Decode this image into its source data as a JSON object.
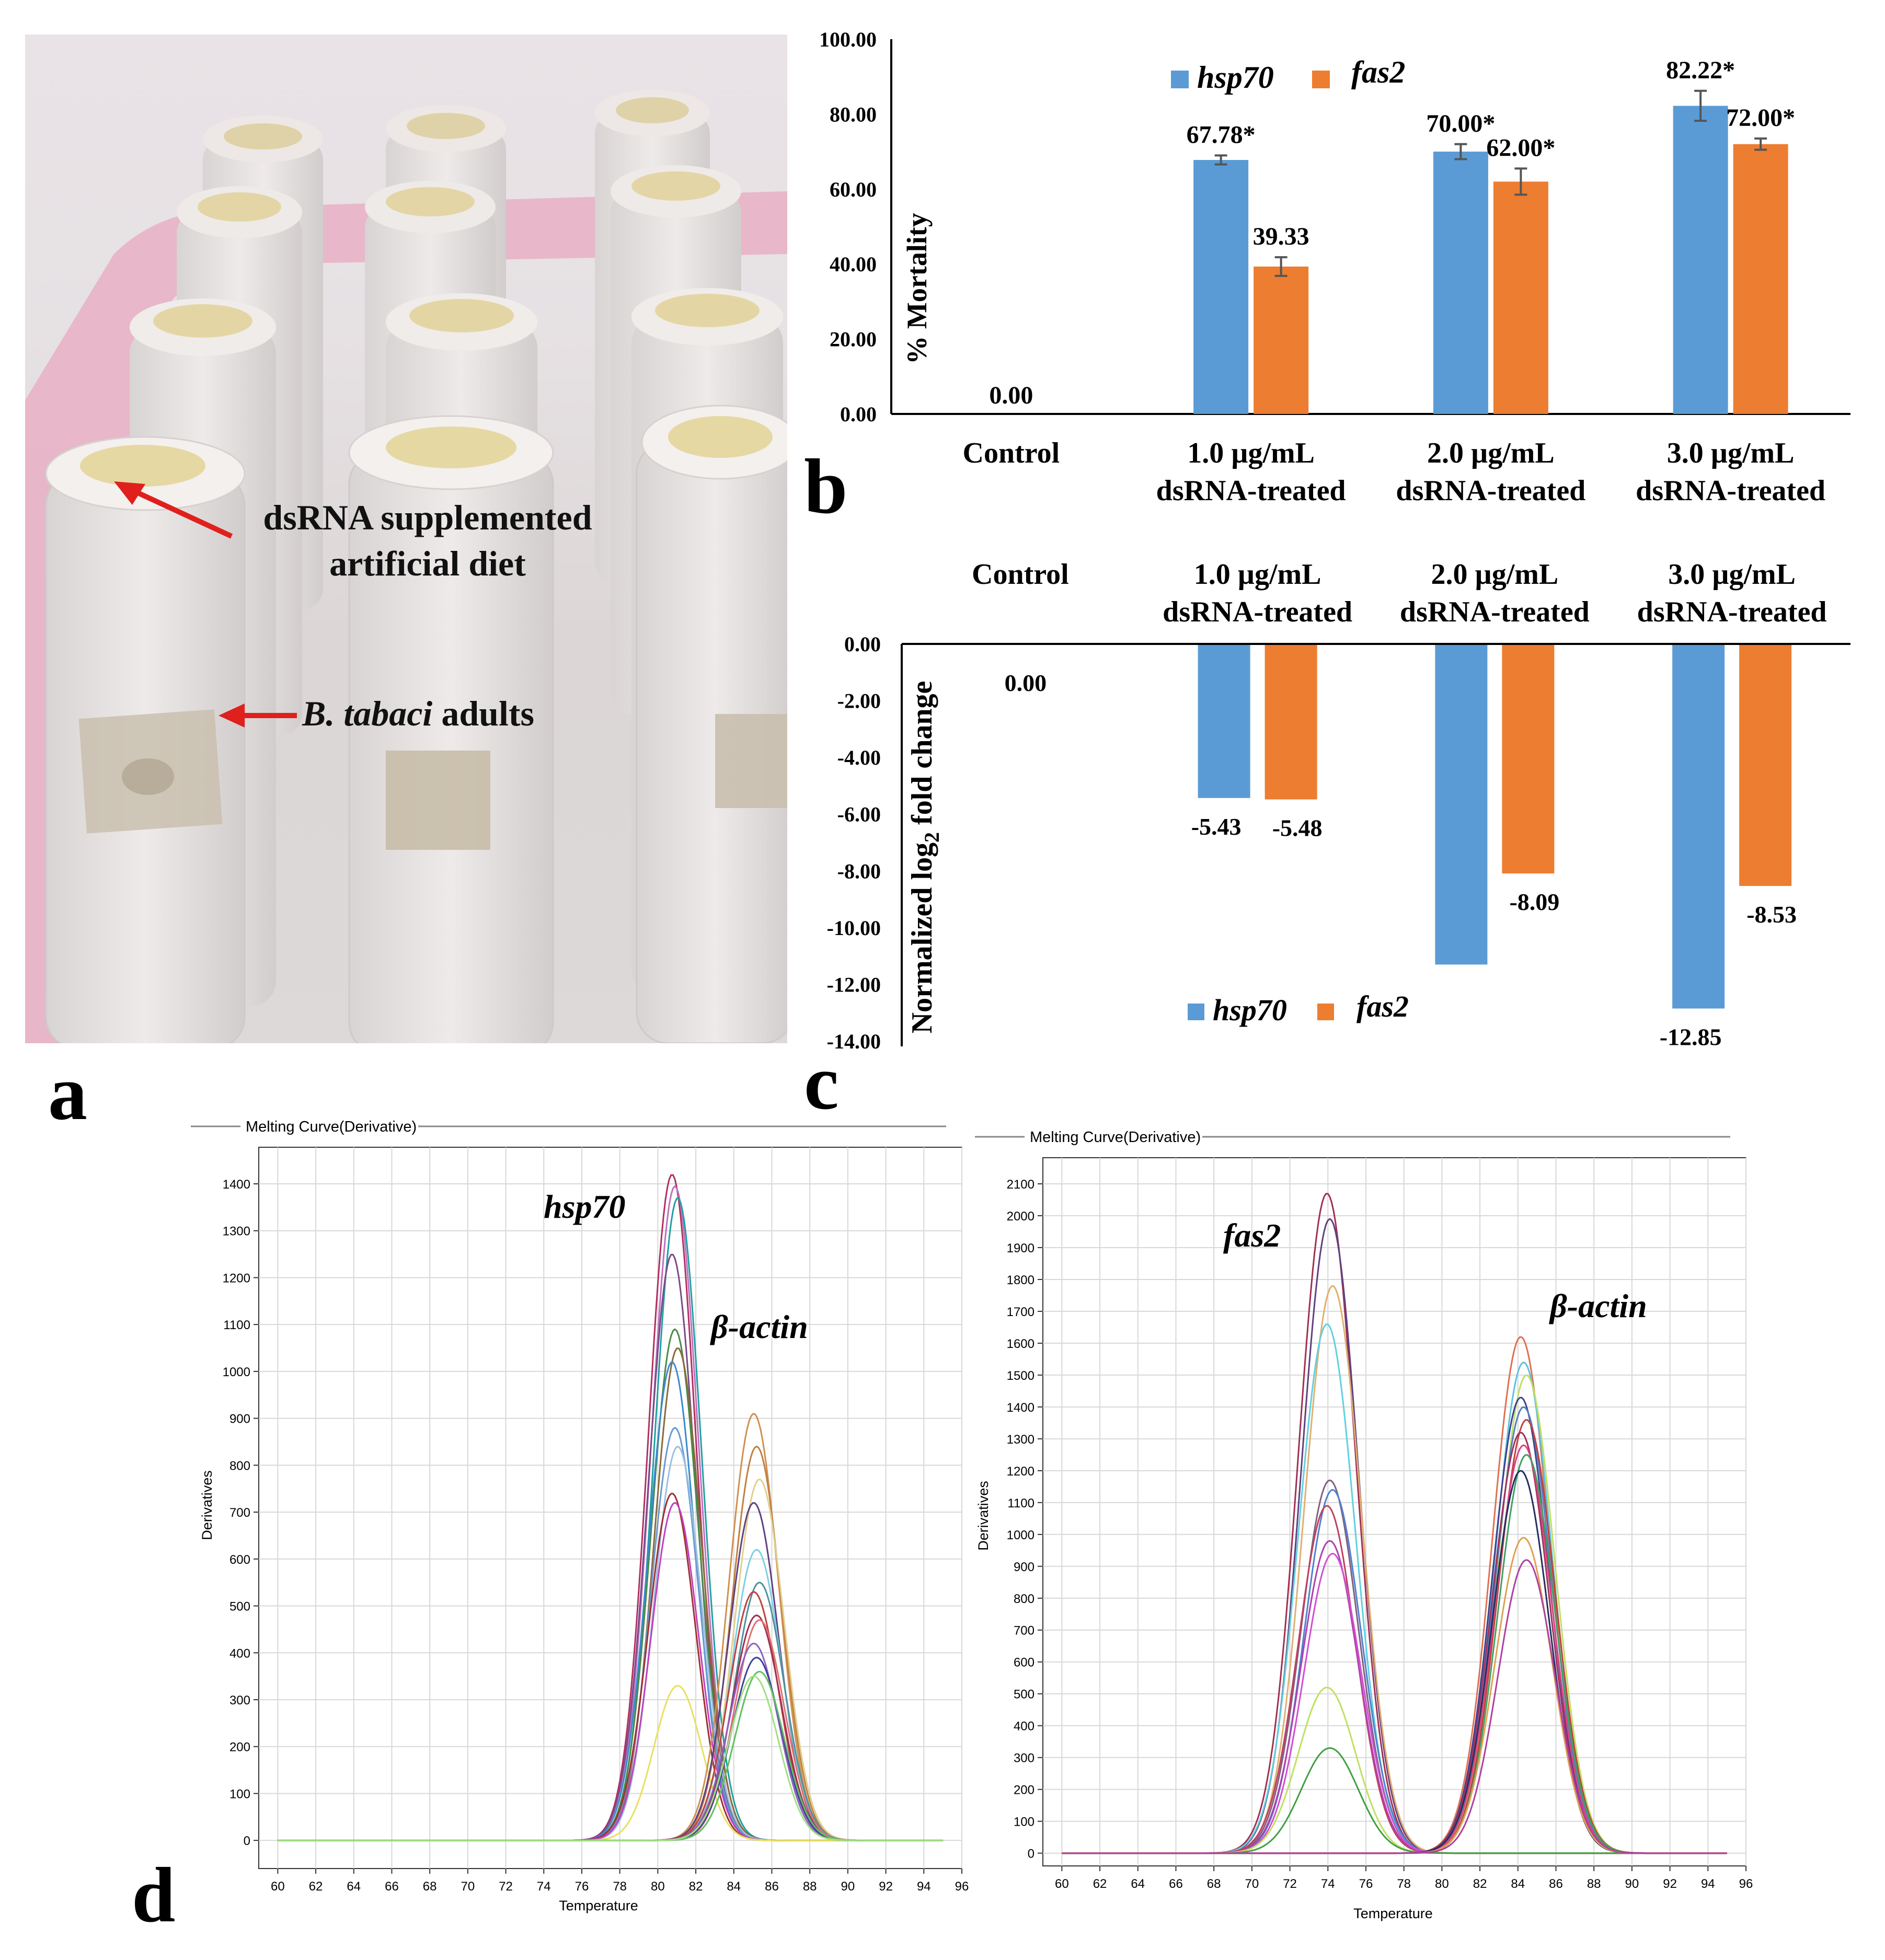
{
  "panels": {
    "a": "a",
    "b": "b",
    "c": "c",
    "d": "d"
  },
  "photo": {
    "annotation_diet": [
      "dsRNA supplemented",
      "artificial diet"
    ],
    "annotation_adults_italic": "B. tabaci",
    "annotation_adults_rest": " adults"
  },
  "colors": {
    "hsp70": "#5b9bd5",
    "fas2": "#ed7d31",
    "error": "#555555"
  },
  "chart_data": [
    {
      "id": "b",
      "type": "bar",
      "ylabel": "% Mortality",
      "ylim": [
        0,
        100
      ],
      "yticks": [
        "0.00",
        "20.00",
        "40.00",
        "60.00",
        "80.00",
        "100.00"
      ],
      "ytick_values": [
        0,
        20,
        40,
        60,
        80,
        100
      ],
      "categories": [
        [
          "Control"
        ],
        [
          "1.0 µg/mL",
          "dsRNA-treated"
        ],
        [
          "2.0 µg/mL",
          "dsRNA-treated"
        ],
        [
          "3.0 µg/mL",
          "dsRNA-treated"
        ]
      ],
      "control_label": "0.00",
      "legend": [
        "hsp70",
        "fas2"
      ],
      "series": [
        {
          "name": "hsp70",
          "values": [
            0,
            67.78,
            70.0,
            82.22
          ],
          "errors": [
            0,
            1.2,
            2.0,
            4.0
          ],
          "labels": [
            "",
            "67.78*",
            "70.00*",
            "82.22*"
          ]
        },
        {
          "name": "fas2",
          "values": [
            0,
            39.33,
            62.0,
            72.0
          ],
          "errors": [
            0,
            2.5,
            3.5,
            1.5
          ],
          "labels": [
            "",
            "39.33",
            "62.00*",
            "72.00*"
          ]
        }
      ]
    },
    {
      "id": "c",
      "type": "bar",
      "ylabel": "Normalized log2 fold change",
      "ylim": [
        -14,
        0
      ],
      "yticks": [
        "0.00",
        "-2.00",
        "-4.00",
        "-6.00",
        "-8.00",
        "-10.00",
        "-12.00",
        "-14.00"
      ],
      "ytick_values": [
        0,
        -2,
        -4,
        -6,
        -8,
        -10,
        -12,
        -14
      ],
      "categories": [
        [
          "Control"
        ],
        [
          "1.0 µg/mL",
          "dsRNA-treated"
        ],
        [
          "2.0 µg/mL",
          "dsRNA-treated"
        ],
        [
          "3.0 µg/mL",
          "dsRNA-treated"
        ]
      ],
      "control_label": "0.00",
      "legend": [
        "hsp70",
        "fas2"
      ],
      "series": [
        {
          "name": "hsp70",
          "values": [
            0,
            -5.43,
            -11.3,
            -12.85
          ],
          "labels": [
            "",
            "-5.43",
            "",
            "-12.85"
          ]
        },
        {
          "name": "fas2",
          "values": [
            0,
            -5.48,
            -8.09,
            -8.53
          ],
          "labels": [
            "",
            "-5.48",
            "-8.09",
            "-8.53"
          ]
        }
      ]
    },
    {
      "id": "d-left",
      "type": "line",
      "title": "Melting Curve(Derivative)",
      "xlabel": "Temperature",
      "ylabel": "Derivatives",
      "xlim": [
        59,
        96
      ],
      "ylim": [
        -60,
        1400
      ],
      "xticks": [
        "60",
        "62",
        "64",
        "66",
        "68",
        "70",
        "72",
        "74",
        "76",
        "78",
        "80",
        "82",
        "84",
        "86",
        "88",
        "90",
        "92",
        "94",
        "96"
      ],
      "xtick_values": [
        60,
        62,
        64,
        66,
        68,
        70,
        72,
        74,
        76,
        78,
        80,
        82,
        84,
        86,
        88,
        90,
        92,
        94,
        96
      ],
      "yticks": [
        "0",
        "100",
        "200",
        "300",
        "400",
        "500",
        "600",
        "700",
        "800",
        "900",
        "1000",
        "1100",
        "1200",
        "1300",
        "1400"
      ],
      "ytick_values": [
        0,
        100,
        200,
        300,
        400,
        500,
        600,
        700,
        800,
        900,
        1000,
        1100,
        1200,
        1300,
        1400
      ],
      "peak_labels": [
        "hsp70",
        "β-actin"
      ],
      "peaks": [
        {
          "center": 80.9,
          "width": 1.25,
          "heights": [
            1420,
            1395,
            1370,
            1250,
            1090,
            1050,
            1020,
            880,
            840,
            740,
            720,
            330
          ],
          "colors": [
            "#b03060",
            "#c070c0",
            "#20a0a0",
            "#7a4a8a",
            "#4a8a4a",
            "#8a6a3a",
            "#3a8ad0",
            "#6a9ad0",
            "#9ac0e0",
            "#a03030",
            "#c040c0",
            "#e8e060"
          ]
        },
        {
          "center": 85.2,
          "width": 1.3,
          "heights": [
            910,
            840,
            770,
            720,
            620,
            550,
            530,
            480,
            470,
            420,
            390,
            360,
            350
          ],
          "colors": [
            "#d09050",
            "#c08040",
            "#e0d090",
            "#604080",
            "#80d0e0",
            "#5090a0",
            "#c04040",
            "#a03050",
            "#e07070",
            "#9060c0",
            "#4040a0",
            "#60c060",
            "#a0e080"
          ]
        }
      ]
    },
    {
      "id": "d-right",
      "type": "line",
      "title": "Melting Curve(Derivative)",
      "xlabel": "Temperature",
      "ylabel": "Derivatives",
      "xlim": [
        59,
        96
      ],
      "ylim": [
        -40,
        2100
      ],
      "xticks": [
        "60",
        "62",
        "64",
        "66",
        "68",
        "70",
        "72",
        "74",
        "76",
        "78",
        "80",
        "82",
        "84",
        "86",
        "88",
        "90",
        "92",
        "94",
        "96"
      ],
      "xtick_values": [
        60,
        62,
        64,
        66,
        68,
        70,
        72,
        74,
        76,
        78,
        80,
        82,
        84,
        86,
        88,
        90,
        92,
        94,
        96
      ],
      "yticks": [
        "0",
        "100",
        "200",
        "300",
        "400",
        "500",
        "600",
        "700",
        "800",
        "900",
        "1000",
        "1100",
        "1200",
        "1300",
        "1400",
        "1500",
        "1600",
        "1700",
        "1800",
        "1900",
        "2000",
        "2100"
      ],
      "ytick_values": [
        0,
        100,
        200,
        300,
        400,
        500,
        600,
        700,
        800,
        900,
        1000,
        1100,
        1200,
        1300,
        1400,
        1500,
        1600,
        1700,
        1800,
        1900,
        2000,
        2100
      ],
      "peak_labels": [
        "fas2",
        "β-actin"
      ],
      "peaks": [
        {
          "center": 74.1,
          "width": 1.5,
          "heights": [
            2070,
            1990,
            1780,
            1660,
            1170,
            1140,
            1090,
            980,
            940,
            520,
            330
          ],
          "colors": [
            "#a03050",
            "#604080",
            "#e0b070",
            "#60d0e0",
            "#806080",
            "#5080d0",
            "#c04060",
            "#b040b0",
            "#d050d0",
            "#c0e060",
            "#40a040"
          ]
        },
        {
          "center": 84.3,
          "width": 1.5,
          "heights": [
            1620,
            1540,
            1500,
            1430,
            1400,
            1360,
            1320,
            1280,
            1250,
            1200,
            990,
            920
          ],
          "colors": [
            "#e07050",
            "#60c0e0",
            "#c0e060",
            "#404090",
            "#5080c0",
            "#c04040",
            "#a03060",
            "#e04080",
            "#40a060",
            "#203060",
            "#e0a050",
            "#b040a0"
          ]
        }
      ]
    }
  ]
}
